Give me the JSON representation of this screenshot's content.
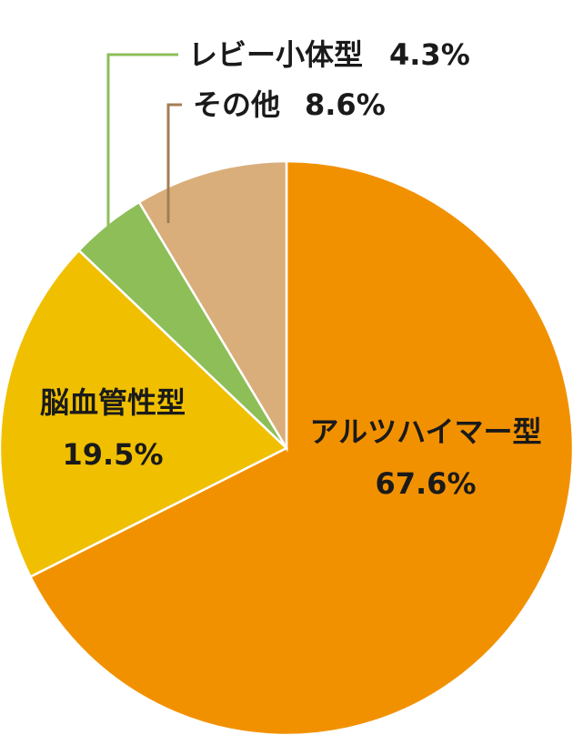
{
  "chart_data": {
    "type": "pie",
    "start_angle_deg": 0,
    "direction": "clockwise",
    "slices": [
      {
        "label": "アルツハイマー型",
        "value": 67.6,
        "value_label": "67.6%",
        "color": "#F29100",
        "label_position": "inside"
      },
      {
        "label": "脳血管性型",
        "value": 19.5,
        "value_label": "19.5%",
        "color": "#F0C000",
        "label_position": "inside"
      },
      {
        "label": "レビー小体型",
        "value": 4.3,
        "value_label": "4.3%",
        "color": "#8DBE58",
        "label_position": "outside",
        "leader_color": "#8DBE58"
      },
      {
        "label": "その他",
        "value": 8.6,
        "value_label": "8.6%",
        "color": "#D9AE7B",
        "label_position": "outside",
        "leader_color": "#A47D55"
      }
    ],
    "slice_border_color": "#ffffff",
    "legend": "none"
  }
}
